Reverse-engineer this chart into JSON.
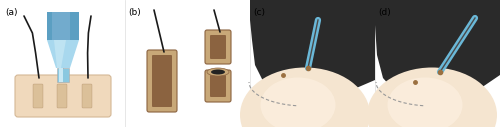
{
  "fig_width": 5.0,
  "fig_height": 1.27,
  "dpi": 100,
  "bg_color": "#ffffff",
  "skin_color": "#f0d9bc",
  "skin_edge": "#d4b896",
  "hair_color": "#1a1a1a",
  "brown_outer": "#c8a878",
  "brown_inner": "#8B6340",
  "blue_top": "#5b9fc2",
  "blue_cone": "#a8d8ee",
  "blue_tube": "#8ac8e0",
  "tube_inner": "#c8e8f4",
  "needle_blue": "#6ab8d8",
  "needle_dark": "#4a4a4a",
  "scalp_dark": "#2a2a2a",
  "scalp_blur": "#555555",
  "forehead_base": "#f5e5d0",
  "forehead_light": "#fdf0e0",
  "forehead_highlight": "#ffffff",
  "dashed_color": "#999999",
  "graft_brown": "#9b7040",
  "panel_labels": [
    "(a)",
    "(b)",
    "(c)",
    "(d)"
  ],
  "label_fontsize": 6.5
}
